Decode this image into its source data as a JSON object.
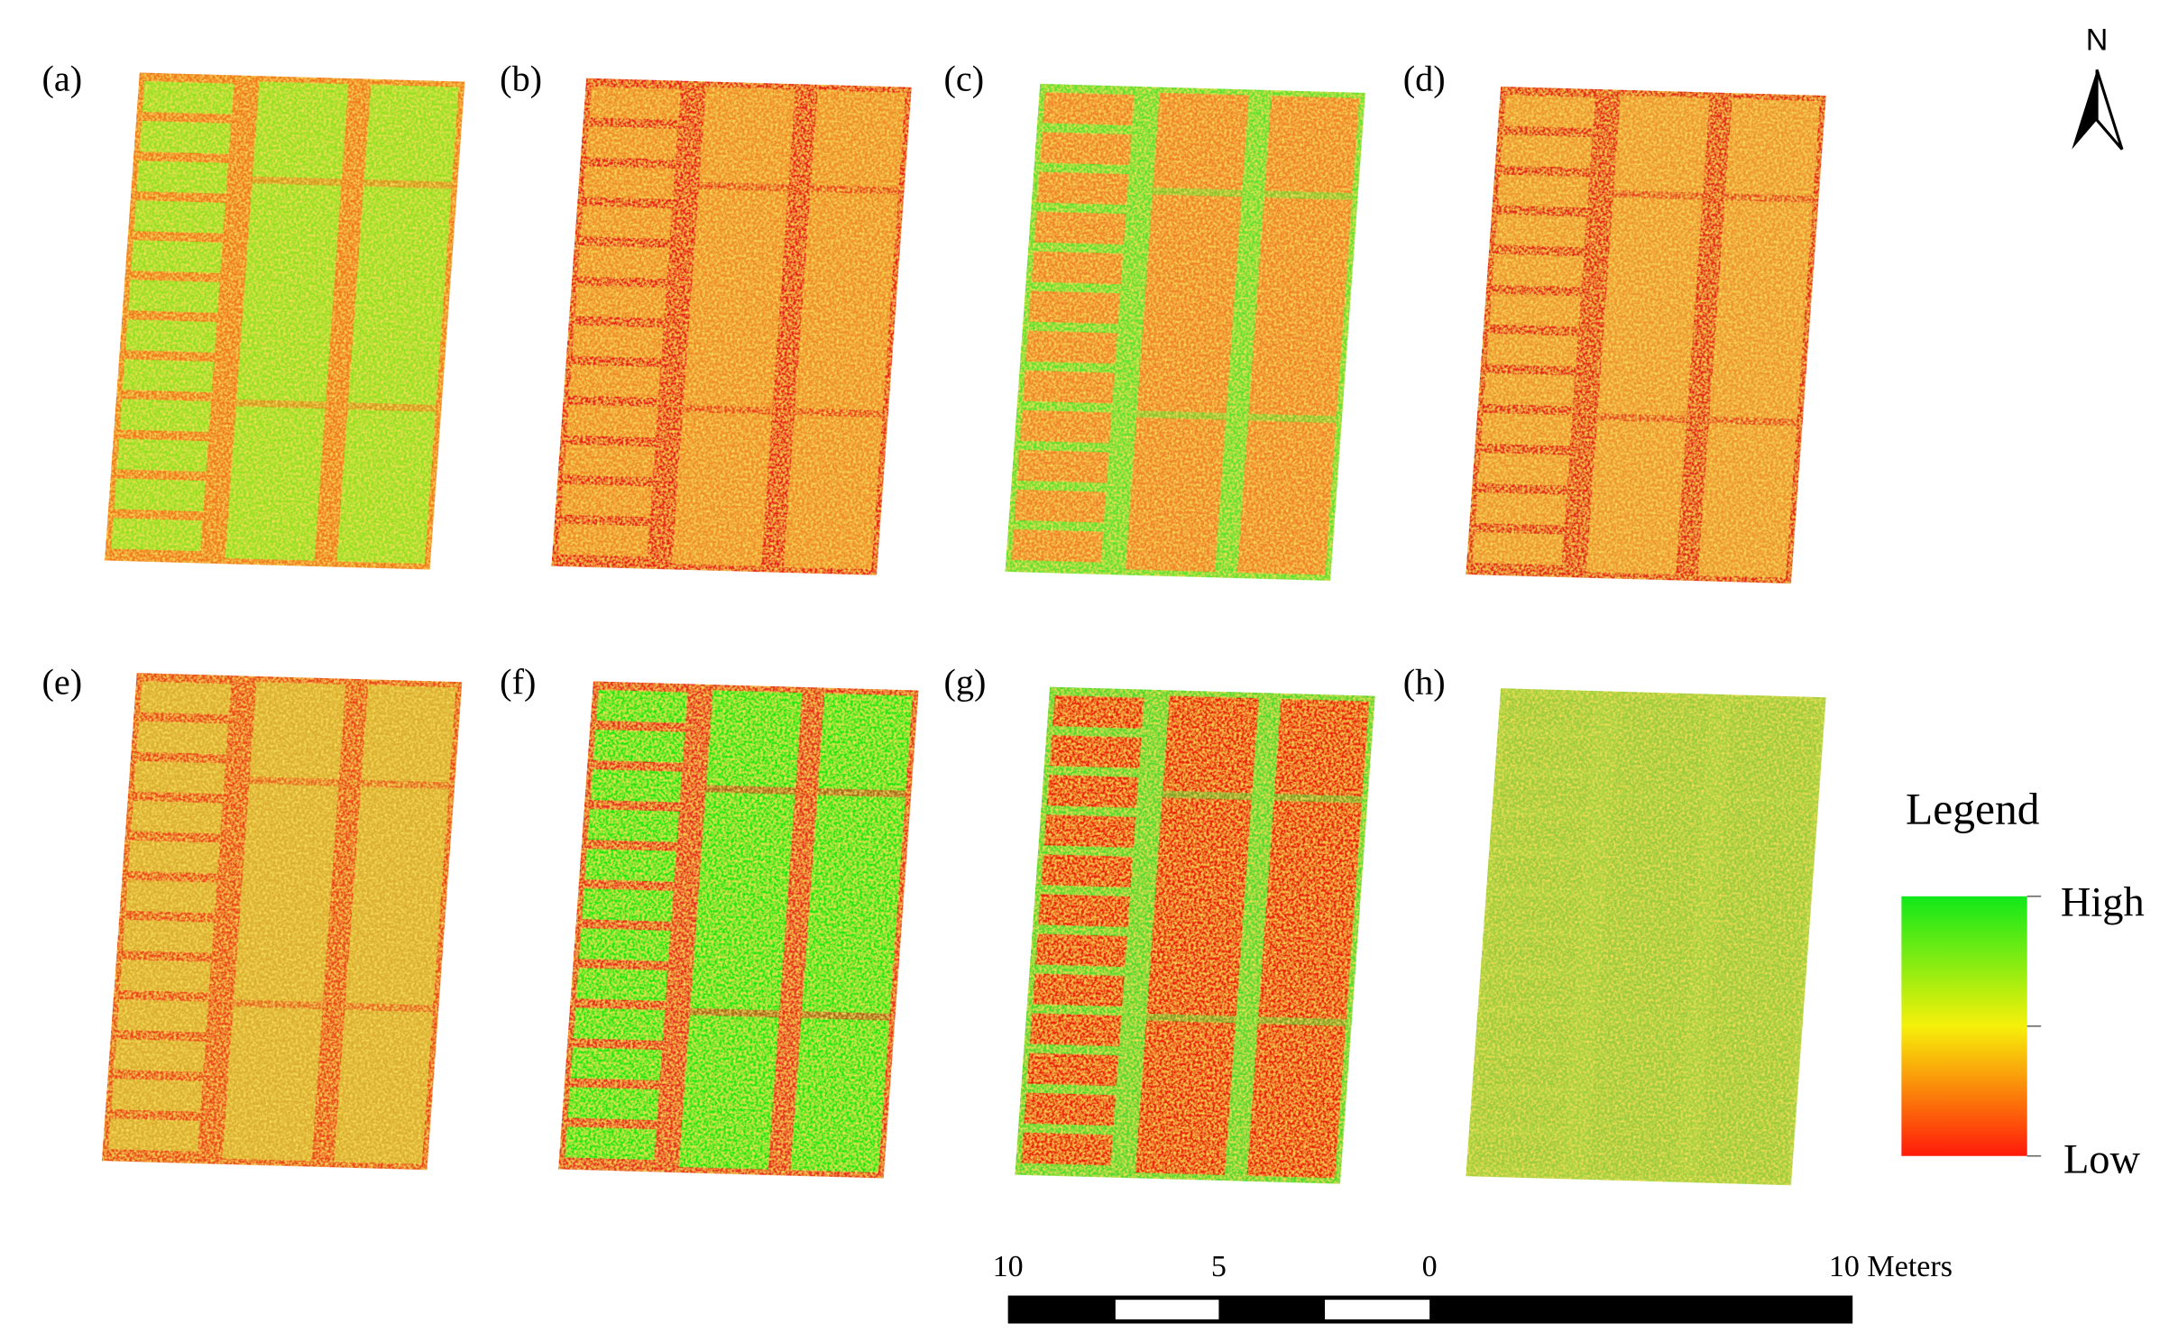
{
  "panels": [
    {
      "label": "(a)"
    },
    {
      "label": "(b)"
    },
    {
      "label": "(c)"
    },
    {
      "label": "(d)"
    },
    {
      "label": "(e)"
    },
    {
      "label": "(f)"
    },
    {
      "label": "(g)"
    },
    {
      "label": "(h)"
    }
  ],
  "north_arrow": {
    "label": "N"
  },
  "legend": {
    "title": "Legend",
    "high": "High",
    "low": "Low"
  },
  "scale_bar": {
    "labels": [
      "10",
      "5",
      "0",
      "10 Meters"
    ]
  }
}
